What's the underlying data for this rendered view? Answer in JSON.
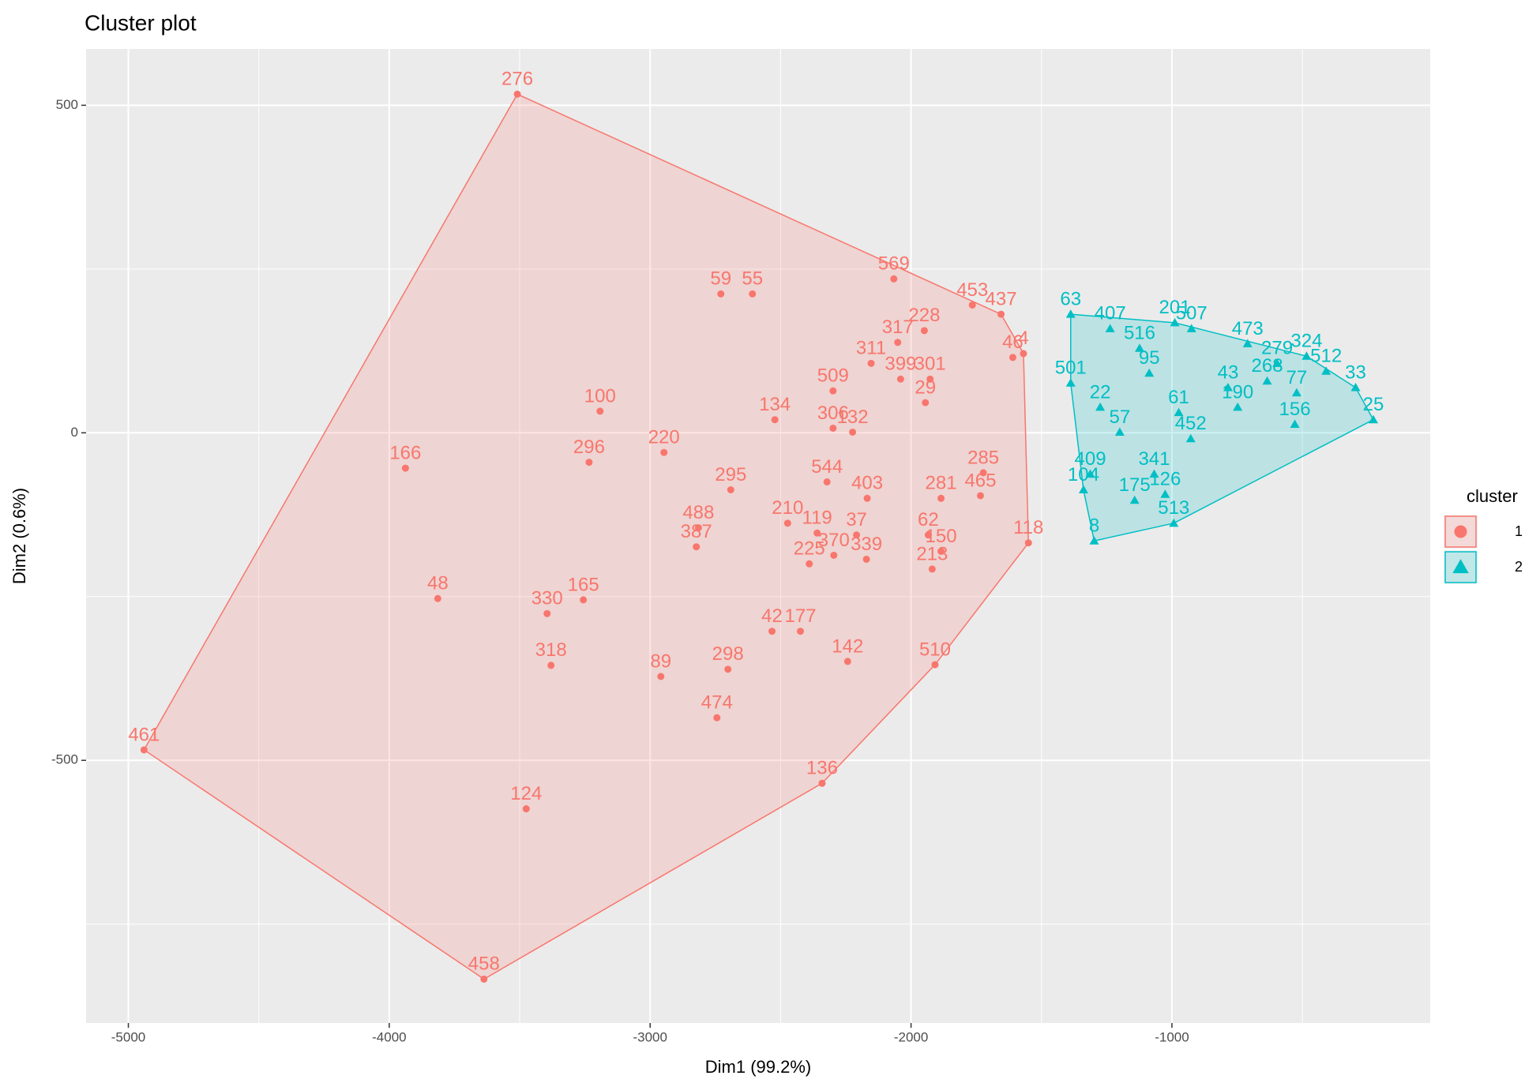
{
  "chart_data": {
    "type": "scatter",
    "title": "Cluster plot",
    "xlabel": "Dim1 (99.2%)",
    "ylabel": "Dim2 (0.6%)",
    "legend_title": "cluster",
    "xlim": [
      -5162,
      -10
    ],
    "ylim": [
      -901,
      586
    ],
    "xticks": [
      -5000,
      -4000,
      -3000,
      -2000,
      -1000
    ],
    "yticks": [
      500,
      0,
      -500
    ],
    "xminor": [
      -4500,
      -3500,
      -2500,
      -1500,
      -500
    ],
    "yminor": [
      250,
      -250,
      -750
    ],
    "grid": true,
    "series": [
      {
        "name": "1",
        "color": "#F8766D",
        "marker": "circle",
        "labels": [
          "276",
          "461",
          "458",
          "136",
          "510",
          "118",
          "569",
          "453",
          "437",
          "166",
          "100",
          "296",
          "220",
          "59",
          "55",
          "134",
          "48",
          "330",
          "165",
          "318",
          "89",
          "298",
          "474",
          "124",
          "42",
          "177",
          "142",
          "295",
          "488",
          "387",
          "210",
          "119",
          "37",
          "225",
          "370",
          "339",
          "403",
          "544",
          "281",
          "62",
          "150",
          "213",
          "465",
          "285",
          "317",
          "228",
          "46",
          "4",
          "311",
          "399",
          "301",
          "29",
          "509",
          "306",
          "132"
        ],
        "x": [
          -3509,
          -4940,
          -3637,
          -2341,
          -1908,
          -1550,
          -2066,
          -1765,
          -1655,
          -3938,
          -3192,
          -3234,
          -2947,
          -2729,
          -2608,
          -2522,
          -3814,
          -3395,
          -3256,
          -3380,
          -2959,
          -2702,
          -2744,
          -3475,
          -2533,
          -2424,
          -2243,
          -2691,
          -2815,
          -2823,
          -2473,
          -2360,
          -2209,
          -2390,
          -2296,
          -2171,
          -2168,
          -2322,
          -1885,
          -1934,
          -1885,
          -1919,
          -1734,
          -1723,
          -2051,
          -1949,
          -1610,
          -1569,
          -2153,
          -2040,
          -1927,
          -1945,
          -2299,
          -2299,
          -2224
        ],
        "y": [
          517,
          -484,
          -834,
          -535,
          -354,
          -168,
          235,
          195,
          181,
          -54,
          33,
          -45,
          -30,
          212,
          212,
          20,
          -253,
          -276,
          -255,
          -355,
          -372,
          -361,
          -435,
          -574,
          -303,
          -303,
          -349,
          -87,
          -145,
          -174,
          -138,
          -153,
          -156,
          -200,
          -187,
          -193,
          -100,
          -75,
          -100,
          -156,
          -181,
          -208,
          -96,
          -61,
          138,
          156,
          115,
          121,
          106,
          82,
          82,
          46,
          64,
          7,
          1
        ]
      },
      {
        "name": "2",
        "color": "#00BFC4",
        "marker": "triangle",
        "labels": [
          "63",
          "201",
          "473",
          "407",
          "25",
          "156",
          "8",
          "513",
          "126",
          "175",
          "341",
          "452",
          "409",
          "104",
          "501",
          "507",
          "324",
          "512",
          "279",
          "516",
          "43",
          "22",
          "57",
          "61",
          "190",
          "33",
          "77",
          "95",
          "268"
        ],
        "x": [
          -1388,
          -989,
          -710,
          -1237,
          -228,
          -529,
          -1298,
          -993,
          -1026,
          -1143,
          -1068,
          -928,
          -1313,
          -1339,
          -1388,
          -925,
          -484,
          -409,
          -597,
          -1124,
          -785,
          -1275,
          -1200,
          -974,
          -748,
          -296,
          -522,
          -1087,
          -635
        ],
        "y": [
          181,
          168,
          136,
          159,
          20,
          13,
          -165,
          -138,
          -94,
          -103,
          -63,
          -9,
          -63,
          -87,
          76,
          159,
          117,
          94,
          106,
          129,
          69,
          39,
          1,
          31,
          39,
          69,
          61,
          91,
          79
        ]
      }
    ]
  }
}
